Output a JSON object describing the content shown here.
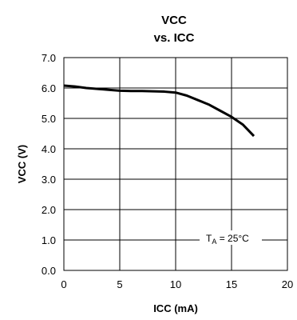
{
  "chart_data": {
    "type": "line",
    "title": "VCC",
    "subtitle": "vs. ICC",
    "xlabel": "ICC (mA)",
    "ylabel": "VCC (V)",
    "xlim": [
      0,
      20
    ],
    "ylim": [
      0,
      7
    ],
    "x_ticks": [
      "0",
      "5",
      "10",
      "15",
      "20"
    ],
    "y_ticks": [
      "0.0",
      "1.0",
      "2.0",
      "3.0",
      "4.0",
      "5.0",
      "6.0",
      "7.0"
    ],
    "grid": true,
    "annotation": {
      "main": "T",
      "sub": "A",
      "rest": " = 25°C"
    },
    "series": [
      {
        "x": [
          0,
          1,
          2,
          3,
          4,
          5,
          6,
          7,
          8,
          9,
          10,
          11,
          12,
          13,
          14,
          15,
          16,
          17
        ],
        "y": [
          6.08,
          6.05,
          6.0,
          5.97,
          5.94,
          5.91,
          5.9,
          5.9,
          5.89,
          5.88,
          5.85,
          5.75,
          5.6,
          5.45,
          5.25,
          5.05,
          4.8,
          4.42
        ]
      }
    ],
    "colors": {
      "line": "#000000",
      "grid": "#000000",
      "background": "#ffffff"
    }
  }
}
